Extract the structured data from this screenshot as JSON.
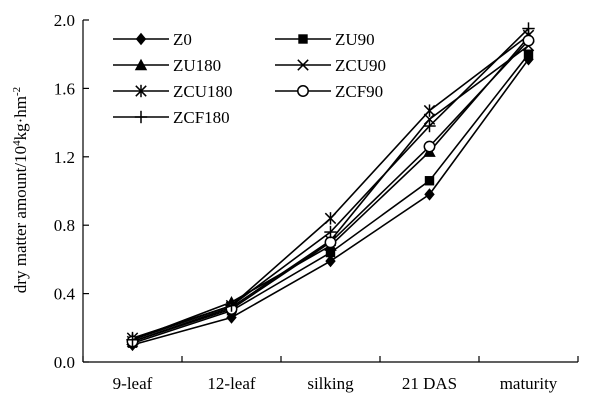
{
  "chart_data": {
    "type": "line",
    "categories": [
      "9-leaf",
      "12-leaf",
      "silking",
      "21 DAS",
      "maturity"
    ],
    "ylabel": "dry matter amount/10⁴kg·hm⁻²",
    "ylabel_parts": {
      "base": "dry matter amount/10",
      "exp1": "4",
      "mid": "kg·hm",
      "exp2": "-2"
    },
    "ylim": [
      0.0,
      2.0
    ],
    "yticks": [
      "0.0",
      "0.4",
      "0.8",
      "1.2",
      "1.6",
      "2.0"
    ],
    "ytick_values": [
      0.0,
      0.4,
      0.8,
      1.2,
      1.6,
      2.0
    ],
    "grid": false,
    "legend_position": "top-left",
    "series": [
      {
        "name": "Z0",
        "marker": "diamond",
        "values": [
          0.1,
          0.26,
          0.59,
          0.98,
          1.77
        ]
      },
      {
        "name": "ZU90",
        "marker": "square",
        "values": [
          0.11,
          0.3,
          0.64,
          1.06,
          1.8
        ]
      },
      {
        "name": "ZU180",
        "marker": "triangle",
        "values": [
          0.13,
          0.35,
          0.68,
          1.23,
          1.9
        ]
      },
      {
        "name": "ZCU90",
        "marker": "x",
        "values": [
          0.12,
          0.32,
          0.71,
          1.42,
          1.85
        ]
      },
      {
        "name": "ZCU180",
        "marker": "asterisk",
        "values": [
          0.14,
          0.33,
          0.84,
          1.47,
          1.91
        ]
      },
      {
        "name": "ZCF90",
        "marker": "circle",
        "values": [
          0.12,
          0.31,
          0.7,
          1.26,
          1.88
        ]
      },
      {
        "name": "ZCF180",
        "marker": "plus",
        "values": [
          0.13,
          0.33,
          0.76,
          1.38,
          1.95
        ]
      }
    ]
  }
}
